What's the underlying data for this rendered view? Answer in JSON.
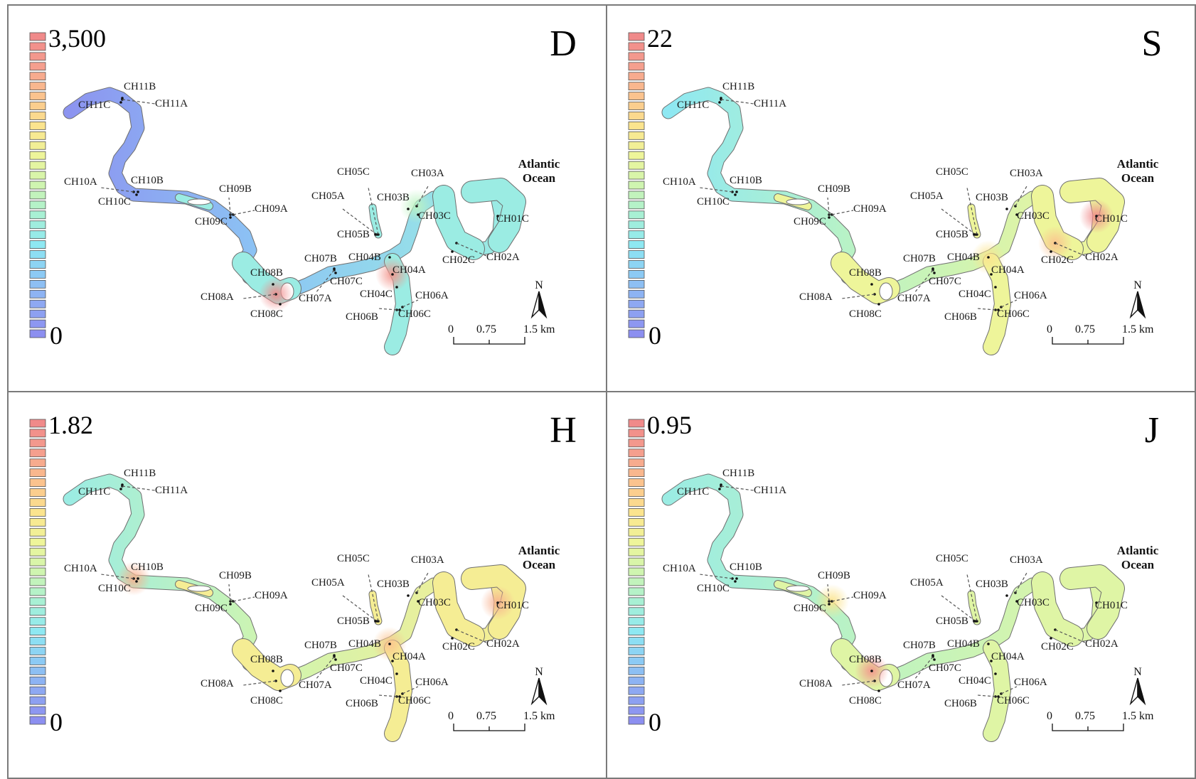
{
  "panels": [
    {
      "letter": "D",
      "legend_max": "3,500",
      "legend_min": "0",
      "hotspots": [
        {
          "site": "CH04A",
          "level": 0.95
        },
        {
          "site": "CH08A",
          "level": 1.0
        },
        {
          "site": "CH03A",
          "level": 0.45
        }
      ],
      "base_level": 0.35,
      "upstream_level": 0.02
    },
    {
      "letter": "S",
      "legend_max": "22",
      "legend_min": "0",
      "hotspots": [
        {
          "site": "CH01C",
          "level": 1.0
        },
        {
          "site": "CH02A",
          "level": 0.8
        },
        {
          "site": "CH04B",
          "level": 0.7
        }
      ],
      "base_level": 0.6,
      "upstream_level": 0.3
    },
    {
      "letter": "H",
      "legend_max": "1.82",
      "legend_min": "0",
      "hotspots": [
        {
          "site": "CH01C",
          "level": 0.85
        },
        {
          "site": "CH04B",
          "level": 0.8
        },
        {
          "site": "CH10A",
          "level": 0.85
        }
      ],
      "base_level": 0.65,
      "upstream_level": 0.35
    },
    {
      "letter": "J",
      "legend_max": "0.95",
      "legend_min": "0",
      "hotspots": [
        {
          "site": "CH08B",
          "level": 0.95
        },
        {
          "site": "CH09A",
          "level": 0.7
        }
      ],
      "base_level": 0.55,
      "upstream_level": 0.35
    }
  ],
  "map": {
    "ocean_label_line1": "Atlantic",
    "ocean_label_line2": "Ocean",
    "north_label": "N",
    "scale_labels": [
      "0",
      "0.75",
      "1.5 km"
    ],
    "stations": [
      "CH11B",
      "CH11C",
      "CH11A",
      "CH10A",
      "CH10B",
      "CH10C",
      "CH09B",
      "CH09A",
      "CH09C",
      "CH08B",
      "CH08A",
      "CH08C",
      "CH07B",
      "CH07C",
      "CH07A",
      "CH05C",
      "CH05A",
      "CH05B",
      "CH03A",
      "CH03B",
      "CH03C",
      "CH04B",
      "CH04A",
      "CH04C",
      "CH06A",
      "CH06B",
      "CH06C",
      "CH02C",
      "CH02A",
      "CH01C"
    ]
  },
  "colors": {
    "ramp": [
      "#8c8ff0",
      "#8ea8f2",
      "#8ccaf4",
      "#8ee8f2",
      "#a8f0d4",
      "#cff5b0",
      "#eef59a",
      "#fbe48e",
      "#fbc38e",
      "#f59f8e",
      "#f08a8a"
    ],
    "border": "#7a7a7a"
  }
}
